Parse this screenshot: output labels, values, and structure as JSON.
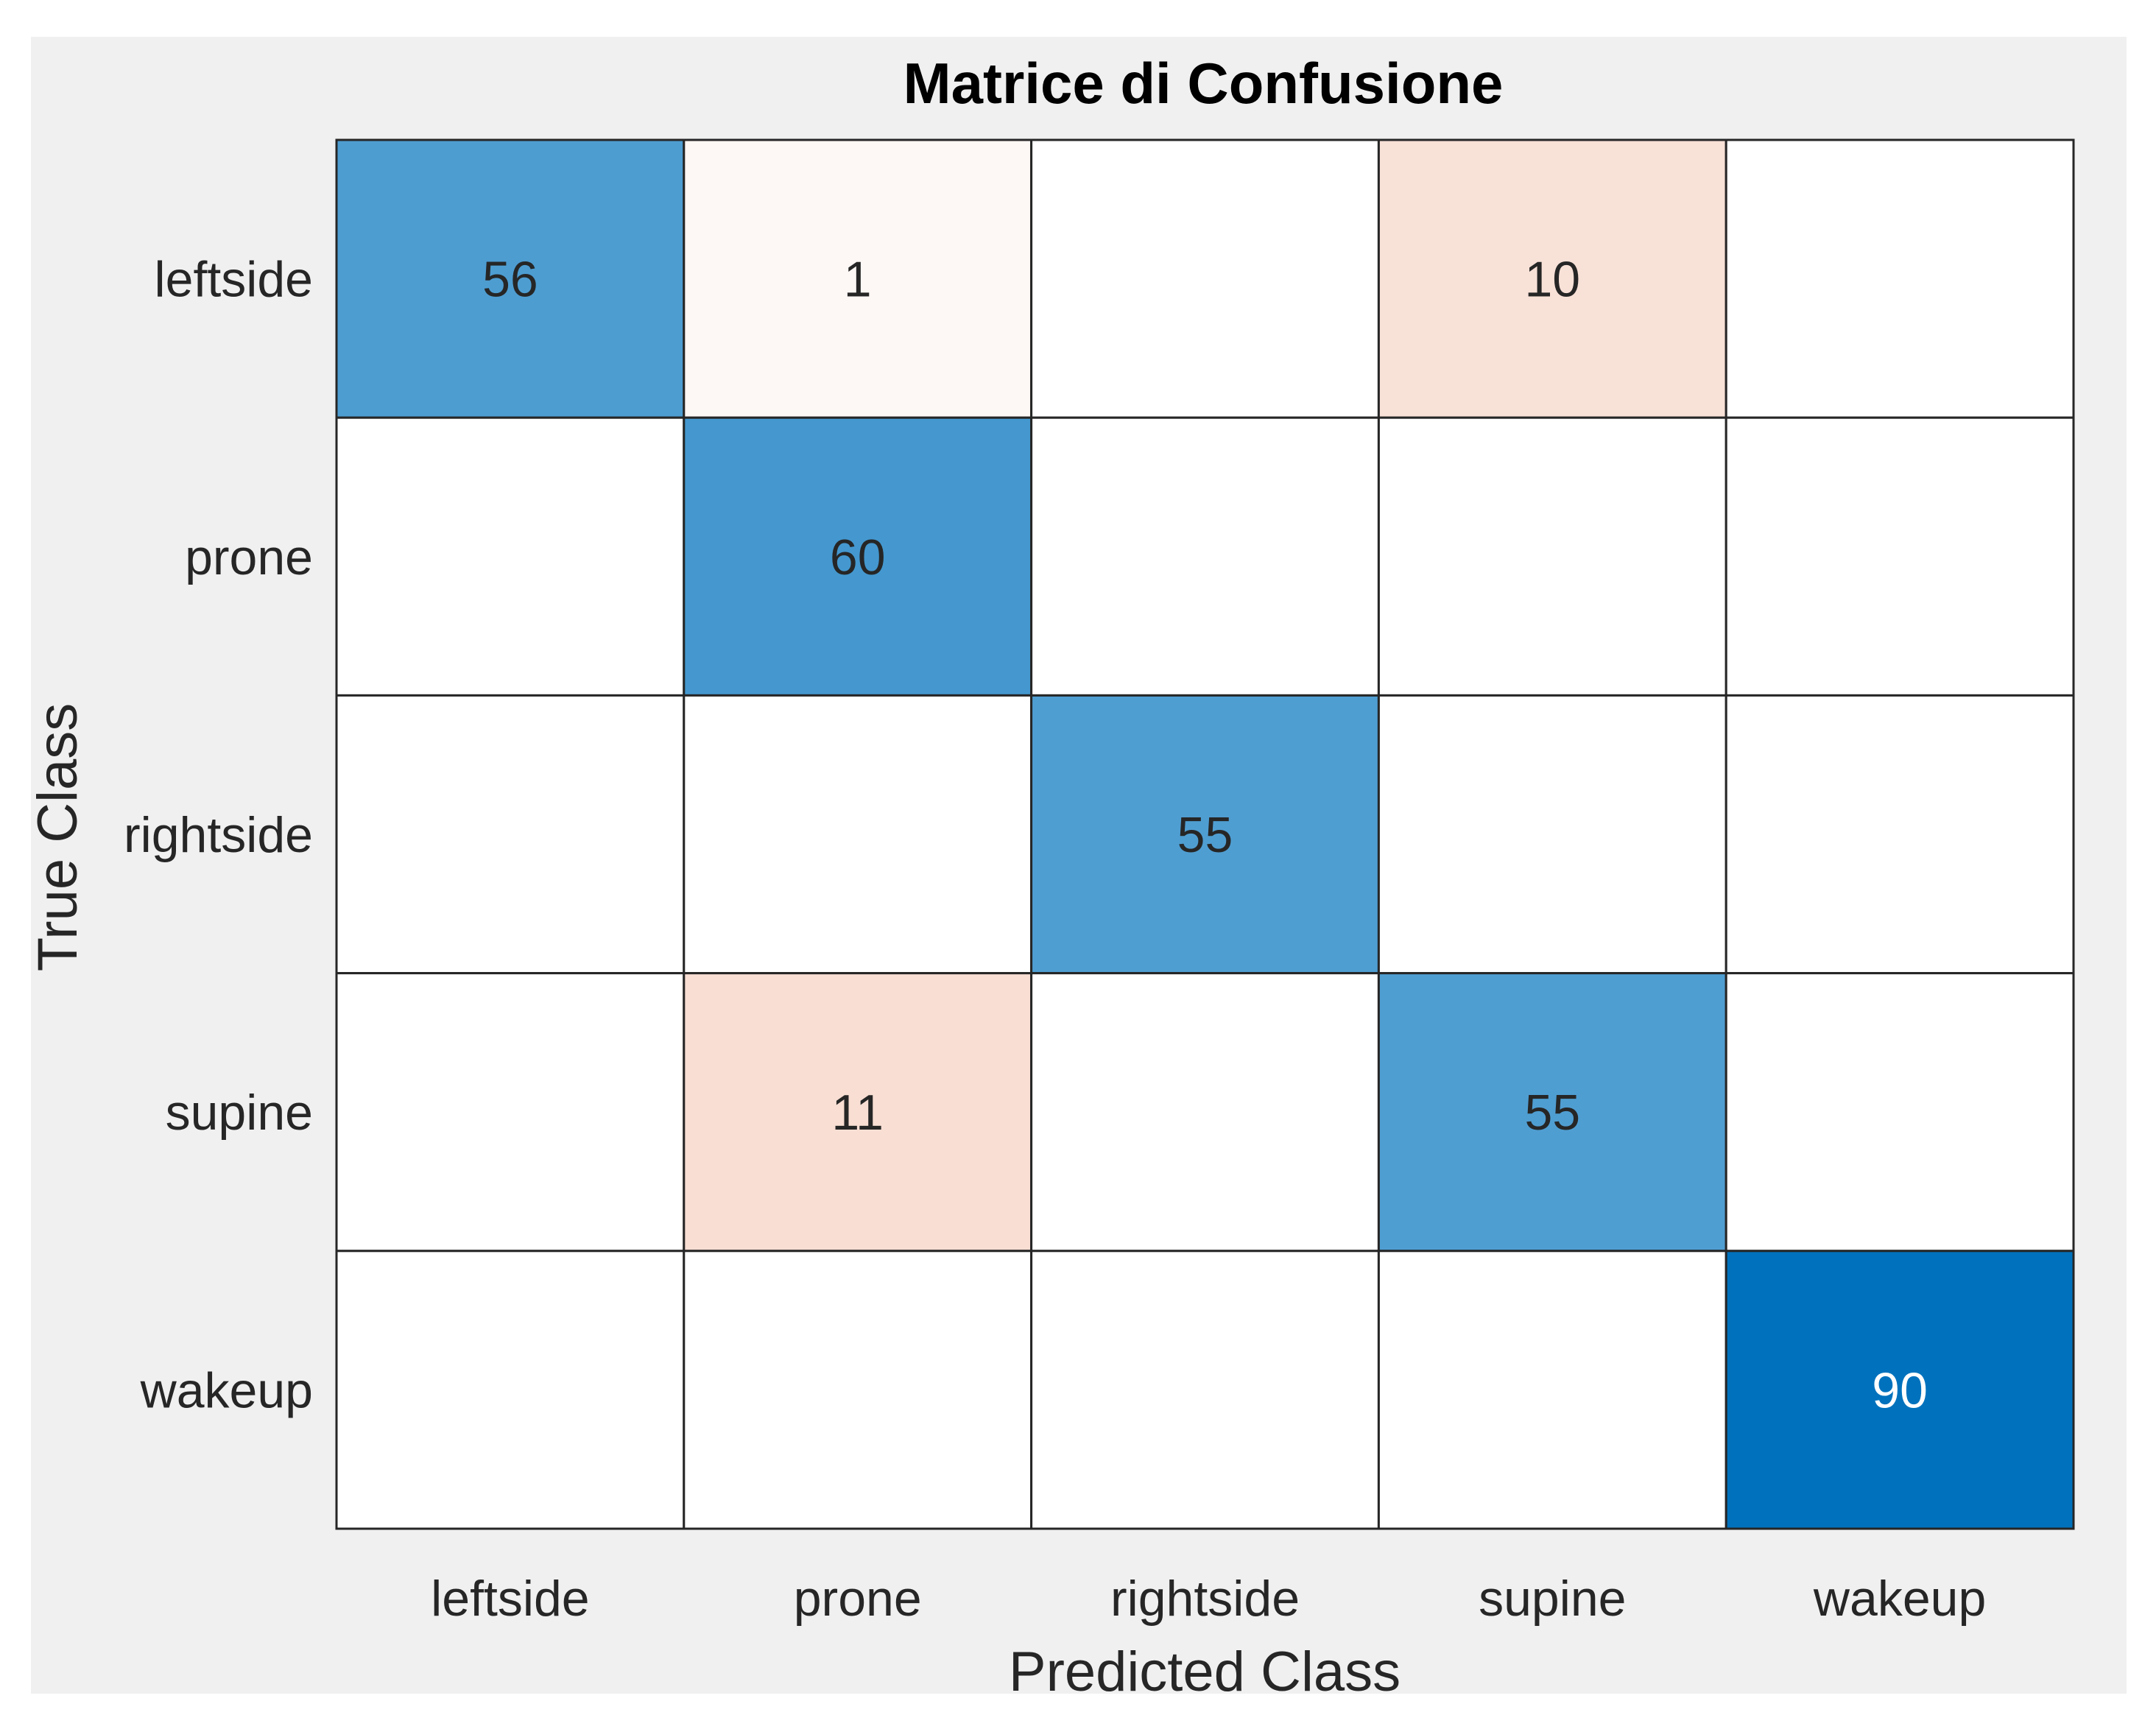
{
  "chart_data": {
    "type": "heatmap",
    "title": "Matrice di Confusione",
    "xlabel": "Predicted Class",
    "ylabel": "True Class",
    "x_categories": [
      "leftside",
      "prone",
      "rightside",
      "supine",
      "wakeup"
    ],
    "y_categories": [
      "leftside",
      "prone",
      "rightside",
      "supine",
      "wakeup"
    ],
    "matrix": [
      [
        56,
        1,
        0,
        10,
        0
      ],
      [
        0,
        60,
        0,
        0,
        0
      ],
      [
        0,
        0,
        55,
        0,
        0
      ],
      [
        0,
        11,
        0,
        55,
        0
      ],
      [
        0,
        0,
        0,
        0,
        90
      ]
    ],
    "grid": true,
    "colors": {
      "figure_background": "#f0f0f0",
      "correct_max": "#0072bd",
      "error_max": "#d95319",
      "empty_cell": "#ffffff",
      "grid_line": "#262626",
      "text_dark": "#262626",
      "text_light": "#ffffff"
    }
  }
}
